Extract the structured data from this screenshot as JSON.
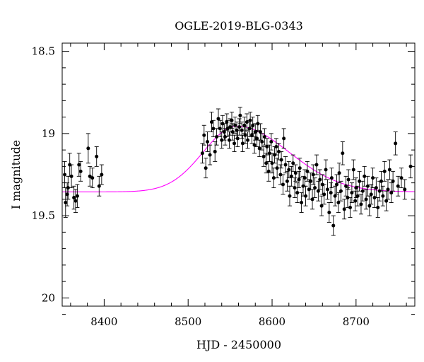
{
  "chart_data": {
    "type": "scatter",
    "title": "OGLE-2019-BLG-0343",
    "xlabel": "HJD - 2450000",
    "ylabel": "I magnitude",
    "xlim": [
      8350,
      8770
    ],
    "ylim": [
      18.45,
      20.05
    ],
    "y_inverted": true,
    "grid": false,
    "x_ticks": [
      8400,
      8500,
      8600,
      8700
    ],
    "x_tick_labels": [
      "8400",
      "8500",
      "8600",
      "8700"
    ],
    "y_ticks": [
      18.5,
      19,
      19.5,
      20
    ],
    "y_tick_labels": [
      "18.5",
      "19",
      "19.5",
      "20"
    ],
    "series": [
      {
        "kind": "points_with_errorbars",
        "color": "#000000",
        "points": [
          [
            8353,
            19.25,
            0.08
          ],
          [
            8354,
            19.42,
            0.09
          ],
          [
            8356,
            19.37,
            0.07
          ],
          [
            8357,
            19.33,
            0.07
          ],
          [
            8359,
            19.19,
            0.07
          ],
          [
            8361,
            19.26,
            0.07
          ],
          [
            8364,
            19.39,
            0.07
          ],
          [
            8366,
            19.41,
            0.07
          ],
          [
            8368,
            19.38,
            0.07
          ],
          [
            8370,
            19.19,
            0.07
          ],
          [
            8372,
            19.23,
            0.06
          ],
          [
            8381,
            19.09,
            0.09
          ],
          [
            8383,
            19.26,
            0.06
          ],
          [
            8386,
            19.27,
            0.06
          ],
          [
            8391,
            19.14,
            0.06
          ],
          [
            8394,
            19.32,
            0.06
          ],
          [
            8397,
            19.25,
            0.06
          ],
          [
            8517,
            19.12,
            0.06
          ],
          [
            8519,
            19.01,
            0.06
          ],
          [
            8521,
            19.21,
            0.06
          ],
          [
            8523,
            19.05,
            0.06
          ],
          [
            8526,
            19.13,
            0.06
          ],
          [
            8528,
            18.93,
            0.06
          ],
          [
            8530,
            18.97,
            0.05
          ],
          [
            8532,
            19.11,
            0.06
          ],
          [
            8534,
            19.02,
            0.05
          ],
          [
            8536,
            18.91,
            0.06
          ],
          [
            8538,
            18.97,
            0.05
          ],
          [
            8540,
            19.04,
            0.05
          ],
          [
            8541,
            18.94,
            0.05
          ],
          [
            8543,
            18.99,
            0.05
          ],
          [
            8544,
            19.02,
            0.05
          ],
          [
            8546,
            18.93,
            0.05
          ],
          [
            8547,
            18.97,
            0.05
          ],
          [
            8549,
            19.04,
            0.05
          ],
          [
            8550,
            18.96,
            0.05
          ],
          [
            8552,
            18.92,
            0.05
          ],
          [
            8553,
            18.99,
            0.05
          ],
          [
            8555,
            19.06,
            0.05
          ],
          [
            8556,
            18.95,
            0.05
          ],
          [
            8558,
            18.98,
            0.05
          ],
          [
            8559,
            19.03,
            0.05
          ],
          [
            8561,
            18.96,
            0.05
          ],
          [
            8562,
            18.89,
            0.05
          ],
          [
            8564,
            18.98,
            0.05
          ],
          [
            8565,
            19.06,
            0.05
          ],
          [
            8567,
            18.95,
            0.05
          ],
          [
            8568,
            19.01,
            0.05
          ],
          [
            8570,
            18.93,
            0.05
          ],
          [
            8571,
            19.04,
            0.05
          ],
          [
            8573,
            18.97,
            0.05
          ],
          [
            8574,
            18.92,
            0.05
          ],
          [
            8576,
            19.01,
            0.05
          ],
          [
            8577,
            18.95,
            0.05
          ],
          [
            8579,
            19.07,
            0.05
          ],
          [
            8580,
            18.99,
            0.05
          ],
          [
            8582,
            19.03,
            0.05
          ],
          [
            8583,
            18.94,
            0.05
          ],
          [
            8585,
            19.09,
            0.05
          ],
          [
            8586,
            18.99,
            0.05
          ],
          [
            8588,
            19.05,
            0.05
          ],
          [
            8590,
            19.14,
            0.06
          ],
          [
            8591,
            19.02,
            0.05
          ],
          [
            8593,
            19.18,
            0.06
          ],
          [
            8594,
            19.08,
            0.05
          ],
          [
            8596,
            19.23,
            0.06
          ],
          [
            8597,
            19.12,
            0.05
          ],
          [
            8599,
            19.05,
            0.05
          ],
          [
            8600,
            19.18,
            0.06
          ],
          [
            8602,
            19.27,
            0.06
          ],
          [
            8603,
            19.13,
            0.05
          ],
          [
            8605,
            19.08,
            0.05
          ],
          [
            8606,
            19.21,
            0.06
          ],
          [
            8608,
            19.11,
            0.05
          ],
          [
            8610,
            19.25,
            0.06
          ],
          [
            8611,
            19.16,
            0.05
          ],
          [
            8613,
            19.31,
            0.06
          ],
          [
            8614,
            19.03,
            0.06
          ],
          [
            8616,
            19.19,
            0.05
          ],
          [
            8618,
            19.29,
            0.06
          ],
          [
            8620,
            19.22,
            0.05
          ],
          [
            8621,
            19.38,
            0.06
          ],
          [
            8623,
            19.26,
            0.06
          ],
          [
            8625,
            19.18,
            0.05
          ],
          [
            8627,
            19.33,
            0.06
          ],
          [
            8628,
            19.24,
            0.05
          ],
          [
            8630,
            19.36,
            0.06
          ],
          [
            8632,
            19.28,
            0.05
          ],
          [
            8633,
            19.21,
            0.06
          ],
          [
            8635,
            19.42,
            0.06
          ],
          [
            8637,
            19.32,
            0.06
          ],
          [
            8639,
            19.27,
            0.05
          ],
          [
            8640,
            19.38,
            0.06
          ],
          [
            8642,
            19.23,
            0.06
          ],
          [
            8644,
            19.34,
            0.06
          ],
          [
            8646,
            19.29,
            0.05
          ],
          [
            8648,
            19.4,
            0.06
          ],
          [
            8649,
            19.25,
            0.06
          ],
          [
            8651,
            19.33,
            0.06
          ],
          [
            8653,
            19.19,
            0.06
          ],
          [
            8655,
            19.35,
            0.06
          ],
          [
            8657,
            19.28,
            0.06
          ],
          [
            8659,
            19.44,
            0.06
          ],
          [
            8660,
            19.31,
            0.06
          ],
          [
            8662,
            19.37,
            0.06
          ],
          [
            8664,
            19.22,
            0.06
          ],
          [
            8666,
            19.34,
            0.06
          ],
          [
            8668,
            19.48,
            0.06
          ],
          [
            8670,
            19.36,
            0.06
          ],
          [
            8671,
            19.27,
            0.06
          ],
          [
            8673,
            19.56,
            0.06
          ],
          [
            8675,
            19.38,
            0.06
          ],
          [
            8677,
            19.31,
            0.06
          ],
          [
            8679,
            19.42,
            0.06
          ],
          [
            8680,
            19.24,
            0.06
          ],
          [
            8682,
            19.35,
            0.06
          ],
          [
            8684,
            19.12,
            0.07
          ],
          [
            8686,
            19.46,
            0.06
          ],
          [
            8688,
            19.32,
            0.06
          ],
          [
            8690,
            19.39,
            0.06
          ],
          [
            8691,
            19.28,
            0.06
          ],
          [
            8693,
            19.45,
            0.06
          ],
          [
            8695,
            19.36,
            0.06
          ],
          [
            8697,
            19.22,
            0.06
          ],
          [
            8699,
            19.41,
            0.06
          ],
          [
            8700,
            19.33,
            0.06
          ],
          [
            8702,
            19.38,
            0.06
          ],
          [
            8704,
            19.29,
            0.06
          ],
          [
            8706,
            19.43,
            0.06
          ],
          [
            8708,
            19.35,
            0.06
          ],
          [
            8710,
            19.26,
            0.06
          ],
          [
            8712,
            19.4,
            0.06
          ],
          [
            8714,
            19.32,
            0.06
          ],
          [
            8716,
            19.44,
            0.06
          ],
          [
            8718,
            19.37,
            0.06
          ],
          [
            8720,
            19.27,
            0.06
          ],
          [
            8722,
            19.39,
            0.06
          ],
          [
            8724,
            19.33,
            0.06
          ],
          [
            8726,
            19.45,
            0.06
          ],
          [
            8728,
            19.35,
            0.06
          ],
          [
            8730,
            19.29,
            0.06
          ],
          [
            8732,
            19.38,
            0.06
          ],
          [
            8734,
            19.23,
            0.06
          ],
          [
            8736,
            19.41,
            0.06
          ],
          [
            8738,
            19.34,
            0.06
          ],
          [
            8740,
            19.22,
            0.06
          ],
          [
            8742,
            19.36,
            0.06
          ],
          [
            8744,
            19.29,
            0.06
          ],
          [
            8747,
            19.06,
            0.07
          ],
          [
            8750,
            19.32,
            0.06
          ],
          [
            8754,
            19.27,
            0.06
          ],
          [
            8758,
            19.34,
            0.06
          ],
          [
            8765,
            19.2,
            0.07
          ]
        ]
      },
      {
        "kind": "model_curve",
        "color": "#ff00ff",
        "baseline": 19.355,
        "peak": 18.955,
        "t0": 8558,
        "width_rise": 40,
        "width_fall": 62
      }
    ]
  }
}
